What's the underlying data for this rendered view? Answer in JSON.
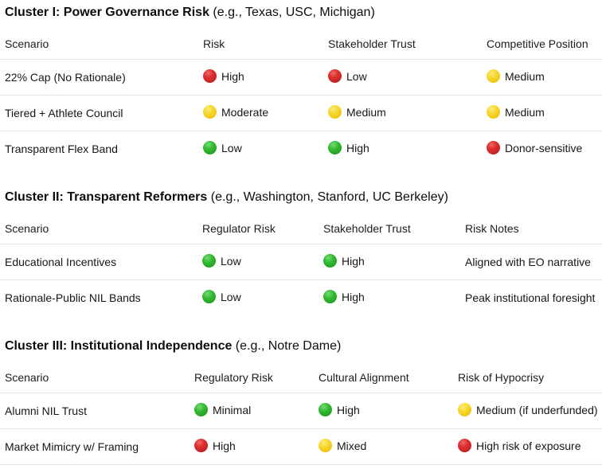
{
  "colors": {
    "status_red": "#d22b2b",
    "status_yellow": "#f5d327",
    "status_green": "#2db52d",
    "divider": "#e4e4e4",
    "text": "#161616"
  },
  "clusters": [
    {
      "title_bold": "Cluster I: Power Governance Risk",
      "title_rest": " (e.g., Texas, USC, Michigan)",
      "columns": [
        "Scenario",
        "Risk",
        "Stakeholder Trust",
        "Competitive Position"
      ],
      "rows": [
        {
          "scenario": "22% Cap (No Rationale)",
          "cells": [
            {
              "dot": "red",
              "text": "High"
            },
            {
              "dot": "red",
              "text": "Low"
            },
            {
              "dot": "yellow",
              "text": "Medium"
            }
          ]
        },
        {
          "scenario": "Tiered + Athlete Council",
          "cells": [
            {
              "dot": "yellow",
              "text": "Moderate"
            },
            {
              "dot": "yellow",
              "text": "Medium"
            },
            {
              "dot": "yellow",
              "text": "Medium"
            }
          ]
        },
        {
          "scenario": "Transparent Flex Band",
          "cells": [
            {
              "dot": "green",
              "text": "Low"
            },
            {
              "dot": "green",
              "text": "High"
            },
            {
              "dot": "red",
              "text": "Donor-sensitive"
            }
          ]
        }
      ]
    },
    {
      "title_bold": "Cluster II: Transparent Reformers",
      "title_rest": " (e.g., Washington, Stanford, UC Berkeley)",
      "columns": [
        "Scenario",
        "Regulator Risk",
        "Stakeholder Trust",
        "Risk Notes"
      ],
      "rows": [
        {
          "scenario": "Educational Incentives",
          "cells": [
            {
              "dot": "green",
              "text": "Low"
            },
            {
              "dot": "green",
              "text": "High"
            },
            {
              "dot": null,
              "text": "Aligned with EO narrative"
            }
          ]
        },
        {
          "scenario": "Rationale-Public NIL Bands",
          "cells": [
            {
              "dot": "green",
              "text": "Low"
            },
            {
              "dot": "green",
              "text": "High"
            },
            {
              "dot": null,
              "text": "Peak institutional foresight"
            }
          ]
        }
      ]
    },
    {
      "title_bold": "Cluster III: Institutional Independence",
      "title_rest": " (e.g., Notre Dame)",
      "columns": [
        "Scenario",
        "Regulatory Risk",
        "Cultural Alignment",
        "Risk of Hypocrisy"
      ],
      "rows": [
        {
          "scenario": "Alumni NIL Trust",
          "cells": [
            {
              "dot": "green",
              "text": "Minimal"
            },
            {
              "dot": "green",
              "text": "High"
            },
            {
              "dot": "yellow",
              "text": "Medium (if underfunded)"
            }
          ]
        },
        {
          "scenario": "Market Mimicry w/ Framing",
          "cells": [
            {
              "dot": "red",
              "text": "High"
            },
            {
              "dot": "yellow",
              "text": "Mixed"
            },
            {
              "dot": "red",
              "text": "High risk of exposure"
            }
          ]
        }
      ]
    }
  ]
}
